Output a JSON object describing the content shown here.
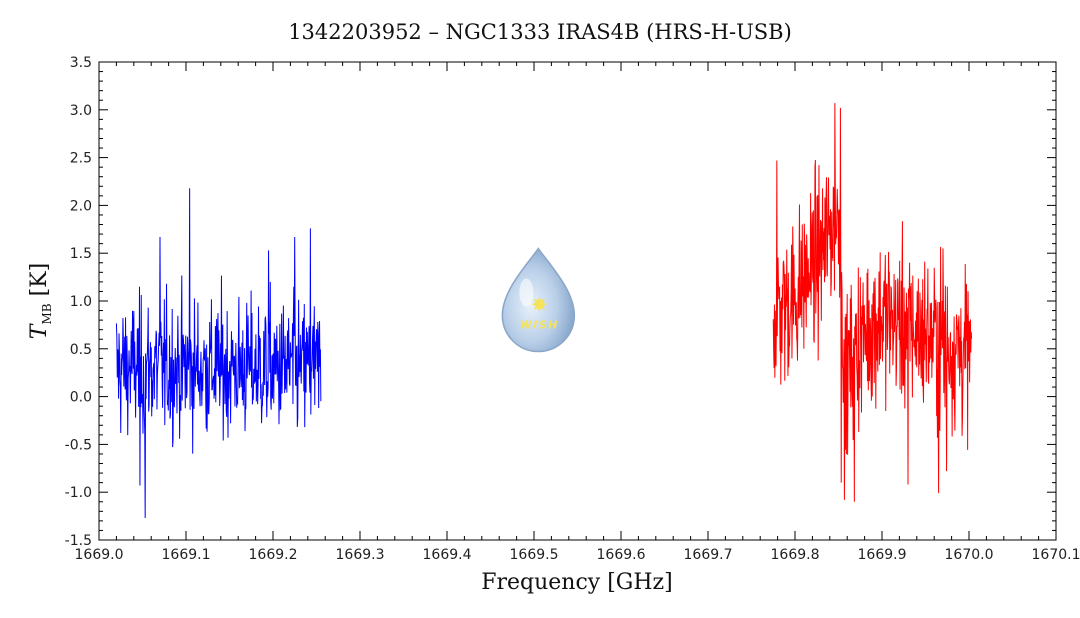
{
  "chart_data": {
    "type": "line",
    "title": "1342203952 – NGC1333 IRAS4B (HRS-H-USB)",
    "xlabel": "Frequency [GHz]",
    "ylabel_main": "T",
    "ylabel_sub": "MB",
    "ylabel_unit": " [K]",
    "xlim": [
      1669.0,
      1670.1
    ],
    "ylim": [
      -1.5,
      3.5
    ],
    "x_ticks": [
      "1669.0",
      "1669.1",
      "1669.2",
      "1669.3",
      "1669.4",
      "1669.5",
      "1669.6",
      "1669.7",
      "1669.8",
      "1669.9",
      "1670.0",
      "1670.1"
    ],
    "y_ticks": [
      "3.5",
      "3.0",
      "2.5",
      "2.0",
      "1.5",
      "1.0",
      "0.5",
      "0.0",
      "-0.5",
      "-1.0",
      "-1.5"
    ],
    "grid": false,
    "logo": {
      "text": "WISH",
      "x": 1669.505,
      "y": 0.9
    },
    "series": [
      {
        "color": "#0000ff",
        "x_start": 1669.02,
        "x_end": 1669.255,
        "points": 470,
        "noise_sigma": 0.35,
        "profile": [
          [
            1669.02,
            0.3
          ],
          [
            1669.255,
            0.3
          ]
        ],
        "spikes": [
          [
            1669.104,
            2.18
          ],
          [
            1669.243,
            1.76
          ],
          [
            1669.053,
            -1.27
          ],
          [
            1669.07,
            1.67
          ],
          [
            1669.047,
            -0.93
          ],
          [
            1669.195,
            1.53
          ],
          [
            1669.225,
            1.67
          ]
        ]
      },
      {
        "color": "#ff0000",
        "x_start": 1669.775,
        "x_end": 1670.003,
        "points": 500,
        "noise_sigma": 0.42,
        "profile": [
          [
            1669.775,
            0.85
          ],
          [
            1669.8,
            1.05
          ],
          [
            1669.83,
            1.5
          ],
          [
            1669.852,
            1.95
          ],
          [
            1669.857,
            0.15
          ],
          [
            1669.87,
            0.55
          ],
          [
            1669.9,
            0.85
          ],
          [
            1669.95,
            0.65
          ],
          [
            1670.003,
            0.45
          ]
        ],
        "spikes": [
          [
            1669.846,
            3.07
          ],
          [
            1669.852,
            3.02
          ],
          [
            1669.779,
            2.47
          ],
          [
            1669.853,
            -0.9
          ],
          [
            1669.857,
            -1.08
          ],
          [
            1669.868,
            -1.1
          ],
          [
            1669.93,
            -0.92
          ],
          [
            1669.965,
            -1.01
          ],
          [
            1669.974,
            -0.78
          ],
          [
            1669.97,
            1.55
          ]
        ]
      }
    ]
  }
}
